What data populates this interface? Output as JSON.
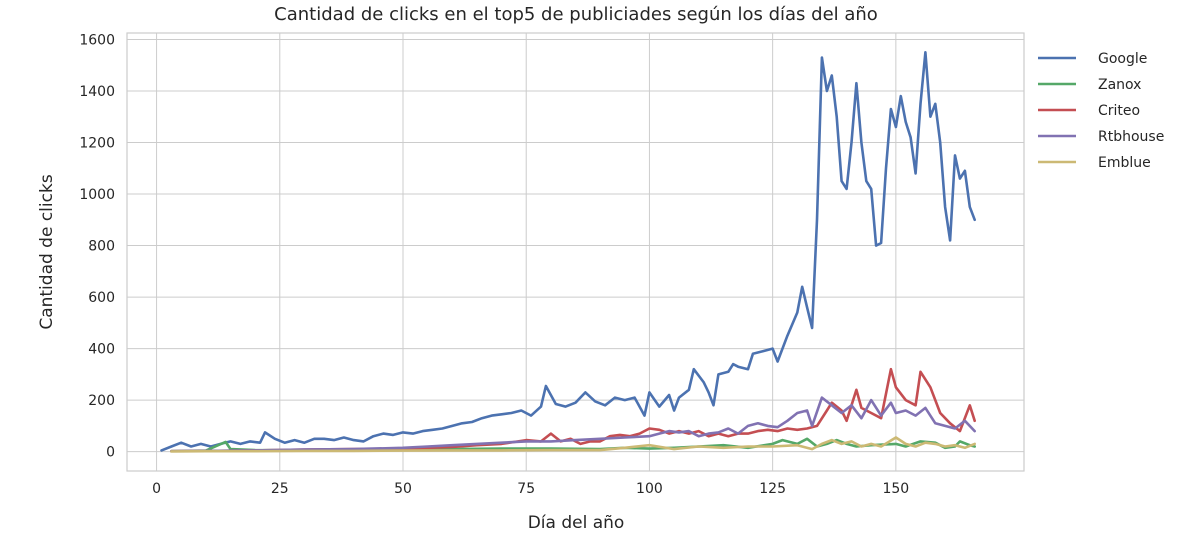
{
  "chart_data": {
    "type": "line",
    "title": "Cantidad de clicks en el top5 de publiciades según los días del año",
    "xlabel": "Día del año",
    "ylabel": "Cantidad de clicks",
    "xlim": [
      -6,
      176
    ],
    "ylim": [
      -75,
      1625
    ],
    "xticks": [
      0,
      25,
      50,
      75,
      100,
      125,
      150
    ],
    "yticks": [
      0,
      200,
      400,
      600,
      800,
      1000,
      1200,
      1400,
      1600
    ],
    "grid": true,
    "legend": "outside-top-right",
    "series": [
      {
        "name": "Google",
        "color": "#4c72b0",
        "points": [
          [
            1,
            5
          ],
          [
            3,
            20
          ],
          [
            5,
            35
          ],
          [
            7,
            20
          ],
          [
            9,
            30
          ],
          [
            11,
            20
          ],
          [
            13,
            30
          ],
          [
            15,
            40
          ],
          [
            17,
            30
          ],
          [
            19,
            40
          ],
          [
            21,
            35
          ],
          [
            22,
            75
          ],
          [
            24,
            50
          ],
          [
            26,
            35
          ],
          [
            28,
            45
          ],
          [
            30,
            35
          ],
          [
            32,
            50
          ],
          [
            34,
            50
          ],
          [
            36,
            45
          ],
          [
            38,
            55
          ],
          [
            40,
            45
          ],
          [
            42,
            40
          ],
          [
            44,
            60
          ],
          [
            46,
            70
          ],
          [
            48,
            65
          ],
          [
            50,
            75
          ],
          [
            52,
            70
          ],
          [
            54,
            80
          ],
          [
            56,
            85
          ],
          [
            58,
            90
          ],
          [
            60,
            100
          ],
          [
            62,
            110
          ],
          [
            64,
            115
          ],
          [
            66,
            130
          ],
          [
            68,
            140
          ],
          [
            70,
            145
          ],
          [
            72,
            150
          ],
          [
            74,
            160
          ],
          [
            76,
            140
          ],
          [
            78,
            175
          ],
          [
            79,
            255
          ],
          [
            81,
            185
          ],
          [
            83,
            175
          ],
          [
            85,
            190
          ],
          [
            87,
            230
          ],
          [
            89,
            195
          ],
          [
            91,
            180
          ],
          [
            93,
            210
          ],
          [
            95,
            200
          ],
          [
            97,
            210
          ],
          [
            99,
            140
          ],
          [
            100,
            230
          ],
          [
            102,
            175
          ],
          [
            104,
            220
          ],
          [
            105,
            160
          ],
          [
            106,
            210
          ],
          [
            108,
            240
          ],
          [
            109,
            320
          ],
          [
            111,
            270
          ],
          [
            112,
            230
          ],
          [
            113,
            180
          ],
          [
            114,
            300
          ],
          [
            116,
            310
          ],
          [
            117,
            340
          ],
          [
            118,
            330
          ],
          [
            120,
            320
          ],
          [
            121,
            380
          ],
          [
            123,
            390
          ],
          [
            125,
            400
          ],
          [
            126,
            350
          ],
          [
            128,
            450
          ],
          [
            130,
            540
          ],
          [
            131,
            640
          ],
          [
            132,
            560
          ],
          [
            133,
            480
          ],
          [
            134,
            900
          ],
          [
            135,
            1530
          ],
          [
            136,
            1400
          ],
          [
            137,
            1460
          ],
          [
            138,
            1300
          ],
          [
            139,
            1050
          ],
          [
            140,
            1020
          ],
          [
            141,
            1200
          ],
          [
            142,
            1430
          ],
          [
            143,
            1200
          ],
          [
            144,
            1050
          ],
          [
            145,
            1020
          ],
          [
            146,
            800
          ],
          [
            147,
            810
          ],
          [
            148,
            1100
          ],
          [
            149,
            1330
          ],
          [
            150,
            1260
          ],
          [
            151,
            1380
          ],
          [
            152,
            1280
          ],
          [
            153,
            1220
          ],
          [
            154,
            1080
          ],
          [
            155,
            1350
          ],
          [
            156,
            1550
          ],
          [
            157,
            1300
          ],
          [
            158,
            1350
          ],
          [
            159,
            1200
          ],
          [
            160,
            950
          ],
          [
            161,
            820
          ],
          [
            162,
            1150
          ],
          [
            163,
            1060
          ],
          [
            164,
            1090
          ],
          [
            165,
            950
          ],
          [
            166,
            900
          ]
        ]
      },
      {
        "name": "Zanox",
        "color": "#55a868",
        "points": [
          [
            3,
            2
          ],
          [
            10,
            4
          ],
          [
            14,
            38
          ],
          [
            15,
            10
          ],
          [
            20,
            6
          ],
          [
            30,
            5
          ],
          [
            40,
            5
          ],
          [
            50,
            8
          ],
          [
            60,
            10
          ],
          [
            70,
            12
          ],
          [
            80,
            12
          ],
          [
            90,
            10
          ],
          [
            95,
            15
          ],
          [
            100,
            12
          ],
          [
            105,
            15
          ],
          [
            110,
            20
          ],
          [
            115,
            25
          ],
          [
            120,
            15
          ],
          [
            125,
            30
          ],
          [
            127,
            45
          ],
          [
            130,
            30
          ],
          [
            132,
            50
          ],
          [
            134,
            20
          ],
          [
            136,
            30
          ],
          [
            138,
            45
          ],
          [
            140,
            30
          ],
          [
            142,
            20
          ],
          [
            145,
            25
          ],
          [
            150,
            30
          ],
          [
            152,
            20
          ],
          [
            155,
            40
          ],
          [
            158,
            35
          ],
          [
            160,
            15
          ],
          [
            162,
            20
          ],
          [
            163,
            40
          ],
          [
            165,
            25
          ],
          [
            166,
            20
          ]
        ]
      },
      {
        "name": "Criteo",
        "color": "#c44e52",
        "points": [
          [
            3,
            2
          ],
          [
            10,
            3
          ],
          [
            20,
            5
          ],
          [
            30,
            8
          ],
          [
            40,
            10
          ],
          [
            50,
            12
          ],
          [
            55,
            15
          ],
          [
            60,
            18
          ],
          [
            65,
            25
          ],
          [
            70,
            30
          ],
          [
            75,
            45
          ],
          [
            78,
            40
          ],
          [
            80,
            70
          ],
          [
            82,
            40
          ],
          [
            84,
            50
          ],
          [
            86,
            30
          ],
          [
            88,
            40
          ],
          [
            90,
            40
          ],
          [
            92,
            60
          ],
          [
            94,
            65
          ],
          [
            96,
            60
          ],
          [
            98,
            70
          ],
          [
            100,
            90
          ],
          [
            102,
            85
          ],
          [
            104,
            70
          ],
          [
            106,
            80
          ],
          [
            108,
            70
          ],
          [
            110,
            80
          ],
          [
            112,
            60
          ],
          [
            114,
            70
          ],
          [
            116,
            60
          ],
          [
            118,
            70
          ],
          [
            120,
            70
          ],
          [
            122,
            80
          ],
          [
            124,
            85
          ],
          [
            126,
            80
          ],
          [
            128,
            90
          ],
          [
            130,
            85
          ],
          [
            132,
            90
          ],
          [
            134,
            100
          ],
          [
            136,
            160
          ],
          [
            137,
            190
          ],
          [
            139,
            160
          ],
          [
            140,
            120
          ],
          [
            142,
            240
          ],
          [
            143,
            170
          ],
          [
            145,
            150
          ],
          [
            147,
            130
          ],
          [
            149,
            320
          ],
          [
            150,
            250
          ],
          [
            152,
            200
          ],
          [
            154,
            180
          ],
          [
            155,
            310
          ],
          [
            157,
            250
          ],
          [
            159,
            150
          ],
          [
            161,
            110
          ],
          [
            163,
            80
          ],
          [
            165,
            180
          ],
          [
            166,
            120
          ]
        ]
      },
      {
        "name": "Rtbhouse",
        "color": "#8172b2",
        "points": [
          [
            3,
            2
          ],
          [
            10,
            3
          ],
          [
            20,
            5
          ],
          [
            30,
            8
          ],
          [
            40,
            10
          ],
          [
            50,
            15
          ],
          [
            55,
            20
          ],
          [
            60,
            25
          ],
          [
            65,
            30
          ],
          [
            70,
            35
          ],
          [
            75,
            40
          ],
          [
            80,
            40
          ],
          [
            85,
            45
          ],
          [
            90,
            50
          ],
          [
            95,
            55
          ],
          [
            100,
            60
          ],
          [
            102,
            70
          ],
          [
            104,
            80
          ],
          [
            106,
            75
          ],
          [
            108,
            80
          ],
          [
            110,
            60
          ],
          [
            112,
            70
          ],
          [
            114,
            75
          ],
          [
            116,
            90
          ],
          [
            118,
            70
          ],
          [
            120,
            100
          ],
          [
            122,
            110
          ],
          [
            124,
            100
          ],
          [
            126,
            95
          ],
          [
            128,
            120
          ],
          [
            130,
            150
          ],
          [
            132,
            160
          ],
          [
            133,
            100
          ],
          [
            135,
            210
          ],
          [
            137,
            180
          ],
          [
            139,
            150
          ],
          [
            141,
            180
          ],
          [
            143,
            130
          ],
          [
            145,
            200
          ],
          [
            147,
            140
          ],
          [
            149,
            190
          ],
          [
            150,
            150
          ],
          [
            152,
            160
          ],
          [
            154,
            140
          ],
          [
            156,
            170
          ],
          [
            158,
            110
          ],
          [
            160,
            100
          ],
          [
            162,
            90
          ],
          [
            164,
            120
          ],
          [
            166,
            80
          ]
        ]
      },
      {
        "name": "Emblue",
        "color": "#ccb974",
        "points": [
          [
            3,
            1
          ],
          [
            10,
            2
          ],
          [
            20,
            2
          ],
          [
            30,
            3
          ],
          [
            40,
            3
          ],
          [
            50,
            4
          ],
          [
            60,
            5
          ],
          [
            70,
            5
          ],
          [
            80,
            6
          ],
          [
            90,
            6
          ],
          [
            95,
            15
          ],
          [
            100,
            25
          ],
          [
            105,
            10
          ],
          [
            110,
            20
          ],
          [
            115,
            15
          ],
          [
            120,
            20
          ],
          [
            125,
            20
          ],
          [
            130,
            25
          ],
          [
            133,
            10
          ],
          [
            135,
            30
          ],
          [
            137,
            45
          ],
          [
            139,
            30
          ],
          [
            141,
            40
          ],
          [
            143,
            20
          ],
          [
            145,
            30
          ],
          [
            147,
            20
          ],
          [
            150,
            55
          ],
          [
            152,
            30
          ],
          [
            154,
            20
          ],
          [
            156,
            35
          ],
          [
            158,
            30
          ],
          [
            160,
            20
          ],
          [
            162,
            25
          ],
          [
            164,
            15
          ],
          [
            166,
            30
          ]
        ]
      }
    ]
  }
}
